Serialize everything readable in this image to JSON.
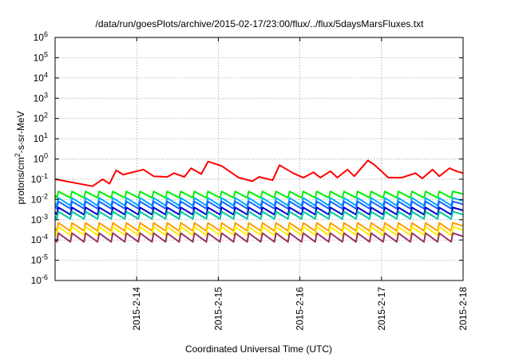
{
  "chart_data": {
    "type": "line",
    "title": "/data/run/goesPlots/archive/2015-02-17/23:00/flux/../flux/5daysMarsFluxes.txt",
    "xlabel": "Coordinated Universal Time (UTC)",
    "ylabel": "protons/cm2-s-sr-MeV",
    "ylabel_parts": {
      "pre": "protons/cm",
      "sup": "2",
      "post": "-s-sr-MeV"
    },
    "yscale": "log",
    "xlim": [
      "2015-02-13 00:00",
      "2015-02-18 00:00"
    ],
    "ylim": [
      1e-06,
      1000000.0
    ],
    "grid": true,
    "xticks": [
      "2015-2-14",
      "2015-2-15",
      "2015-2-16",
      "2015-2-17",
      "2015-2-18"
    ],
    "yticks": [
      {
        "base": "10",
        "exp": "-6"
      },
      {
        "base": "10",
        "exp": "-5"
      },
      {
        "base": "10",
        "exp": "-4"
      },
      {
        "base": "10",
        "exp": "-3"
      },
      {
        "base": "10",
        "exp": "-2"
      },
      {
        "base": "10",
        "exp": "-1"
      },
      {
        "base": "10",
        "exp": "0"
      },
      {
        "base": "10",
        "exp": "1"
      },
      {
        "base": "10",
        "exp": "2"
      },
      {
        "base": "10",
        "exp": "3"
      },
      {
        "base": "10",
        "exp": "4"
      },
      {
        "base": "10",
        "exp": "5"
      },
      {
        "base": "10",
        "exp": "6"
      }
    ],
    "series": [
      {
        "color": "#ff0000",
        "x": [
          "2015-02-13 00:00",
          "2015-02-13 06:00",
          "2015-02-13 11:00",
          "2015-02-13 14:00",
          "2015-02-13 16:00",
          "2015-02-13 18:00",
          "2015-02-13 20:00",
          "2015-02-14 02:00",
          "2015-02-14 05:00",
          "2015-02-14 09:00",
          "2015-02-14 11:00",
          "2015-02-14 14:00",
          "2015-02-14 16:00",
          "2015-02-14 19:00",
          "2015-02-14 21:00",
          "2015-02-15 01:00",
          "2015-02-15 06:00",
          "2015-02-15 10:00",
          "2015-02-15 12:00",
          "2015-02-15 16:00",
          "2015-02-15 18:00",
          "2015-02-15 22:00",
          "2015-02-16 01:00",
          "2015-02-16 04:00",
          "2015-02-16 06:00",
          "2015-02-16 09:00",
          "2015-02-16 11:00",
          "2015-02-16 14:00",
          "2015-02-16 16:00",
          "2015-02-16 20:00",
          "2015-02-16 22:00",
          "2015-02-17 02:00",
          "2015-02-17 06:00",
          "2015-02-17 10:00",
          "2015-02-17 12:00",
          "2015-02-17 15:00",
          "2015-02-17 17:00",
          "2015-02-17 20:00",
          "2015-02-17 22:00",
          "2015-02-18 00:00"
        ],
        "values": [
          0.1,
          0.065,
          0.045,
          0.1,
          0.06,
          0.28,
          0.17,
          0.3,
          0.14,
          0.13,
          0.2,
          0.13,
          0.35,
          0.18,
          0.75,
          0.45,
          0.12,
          0.08,
          0.13,
          0.09,
          0.5,
          0.2,
          0.12,
          0.22,
          0.12,
          0.25,
          0.12,
          0.3,
          0.14,
          0.85,
          0.5,
          0.12,
          0.12,
          0.2,
          0.11,
          0.3,
          0.14,
          0.35,
          0.25,
          0.2
        ]
      },
      {
        "color": "#00ee00",
        "pattern": {
          "high": 0.025,
          "low": 0.012
        }
      },
      {
        "color": "#00aaff",
        "pattern": {
          "high": 0.012,
          "low": 0.005
        }
      },
      {
        "color": "#1a66ff",
        "pattern": {
          "high": 0.008,
          "low": 0.0035
        }
      },
      {
        "color": "#0000cc",
        "pattern": {
          "high": 0.004,
          "low": 0.0018
        }
      },
      {
        "color": "#00c8a0",
        "pattern": {
          "high": 0.0025,
          "low": 0.0011
        }
      },
      {
        "color": "#ff9900",
        "pattern": {
          "high": 0.0007,
          "low": 0.00028
        }
      },
      {
        "color": "#ffee00",
        "pattern": {
          "high": 0.00045,
          "low": 0.00017
        }
      },
      {
        "color": "#993366",
        "pattern": {
          "high": 0.00022,
          "low": 8e-05
        }
      }
    ]
  }
}
